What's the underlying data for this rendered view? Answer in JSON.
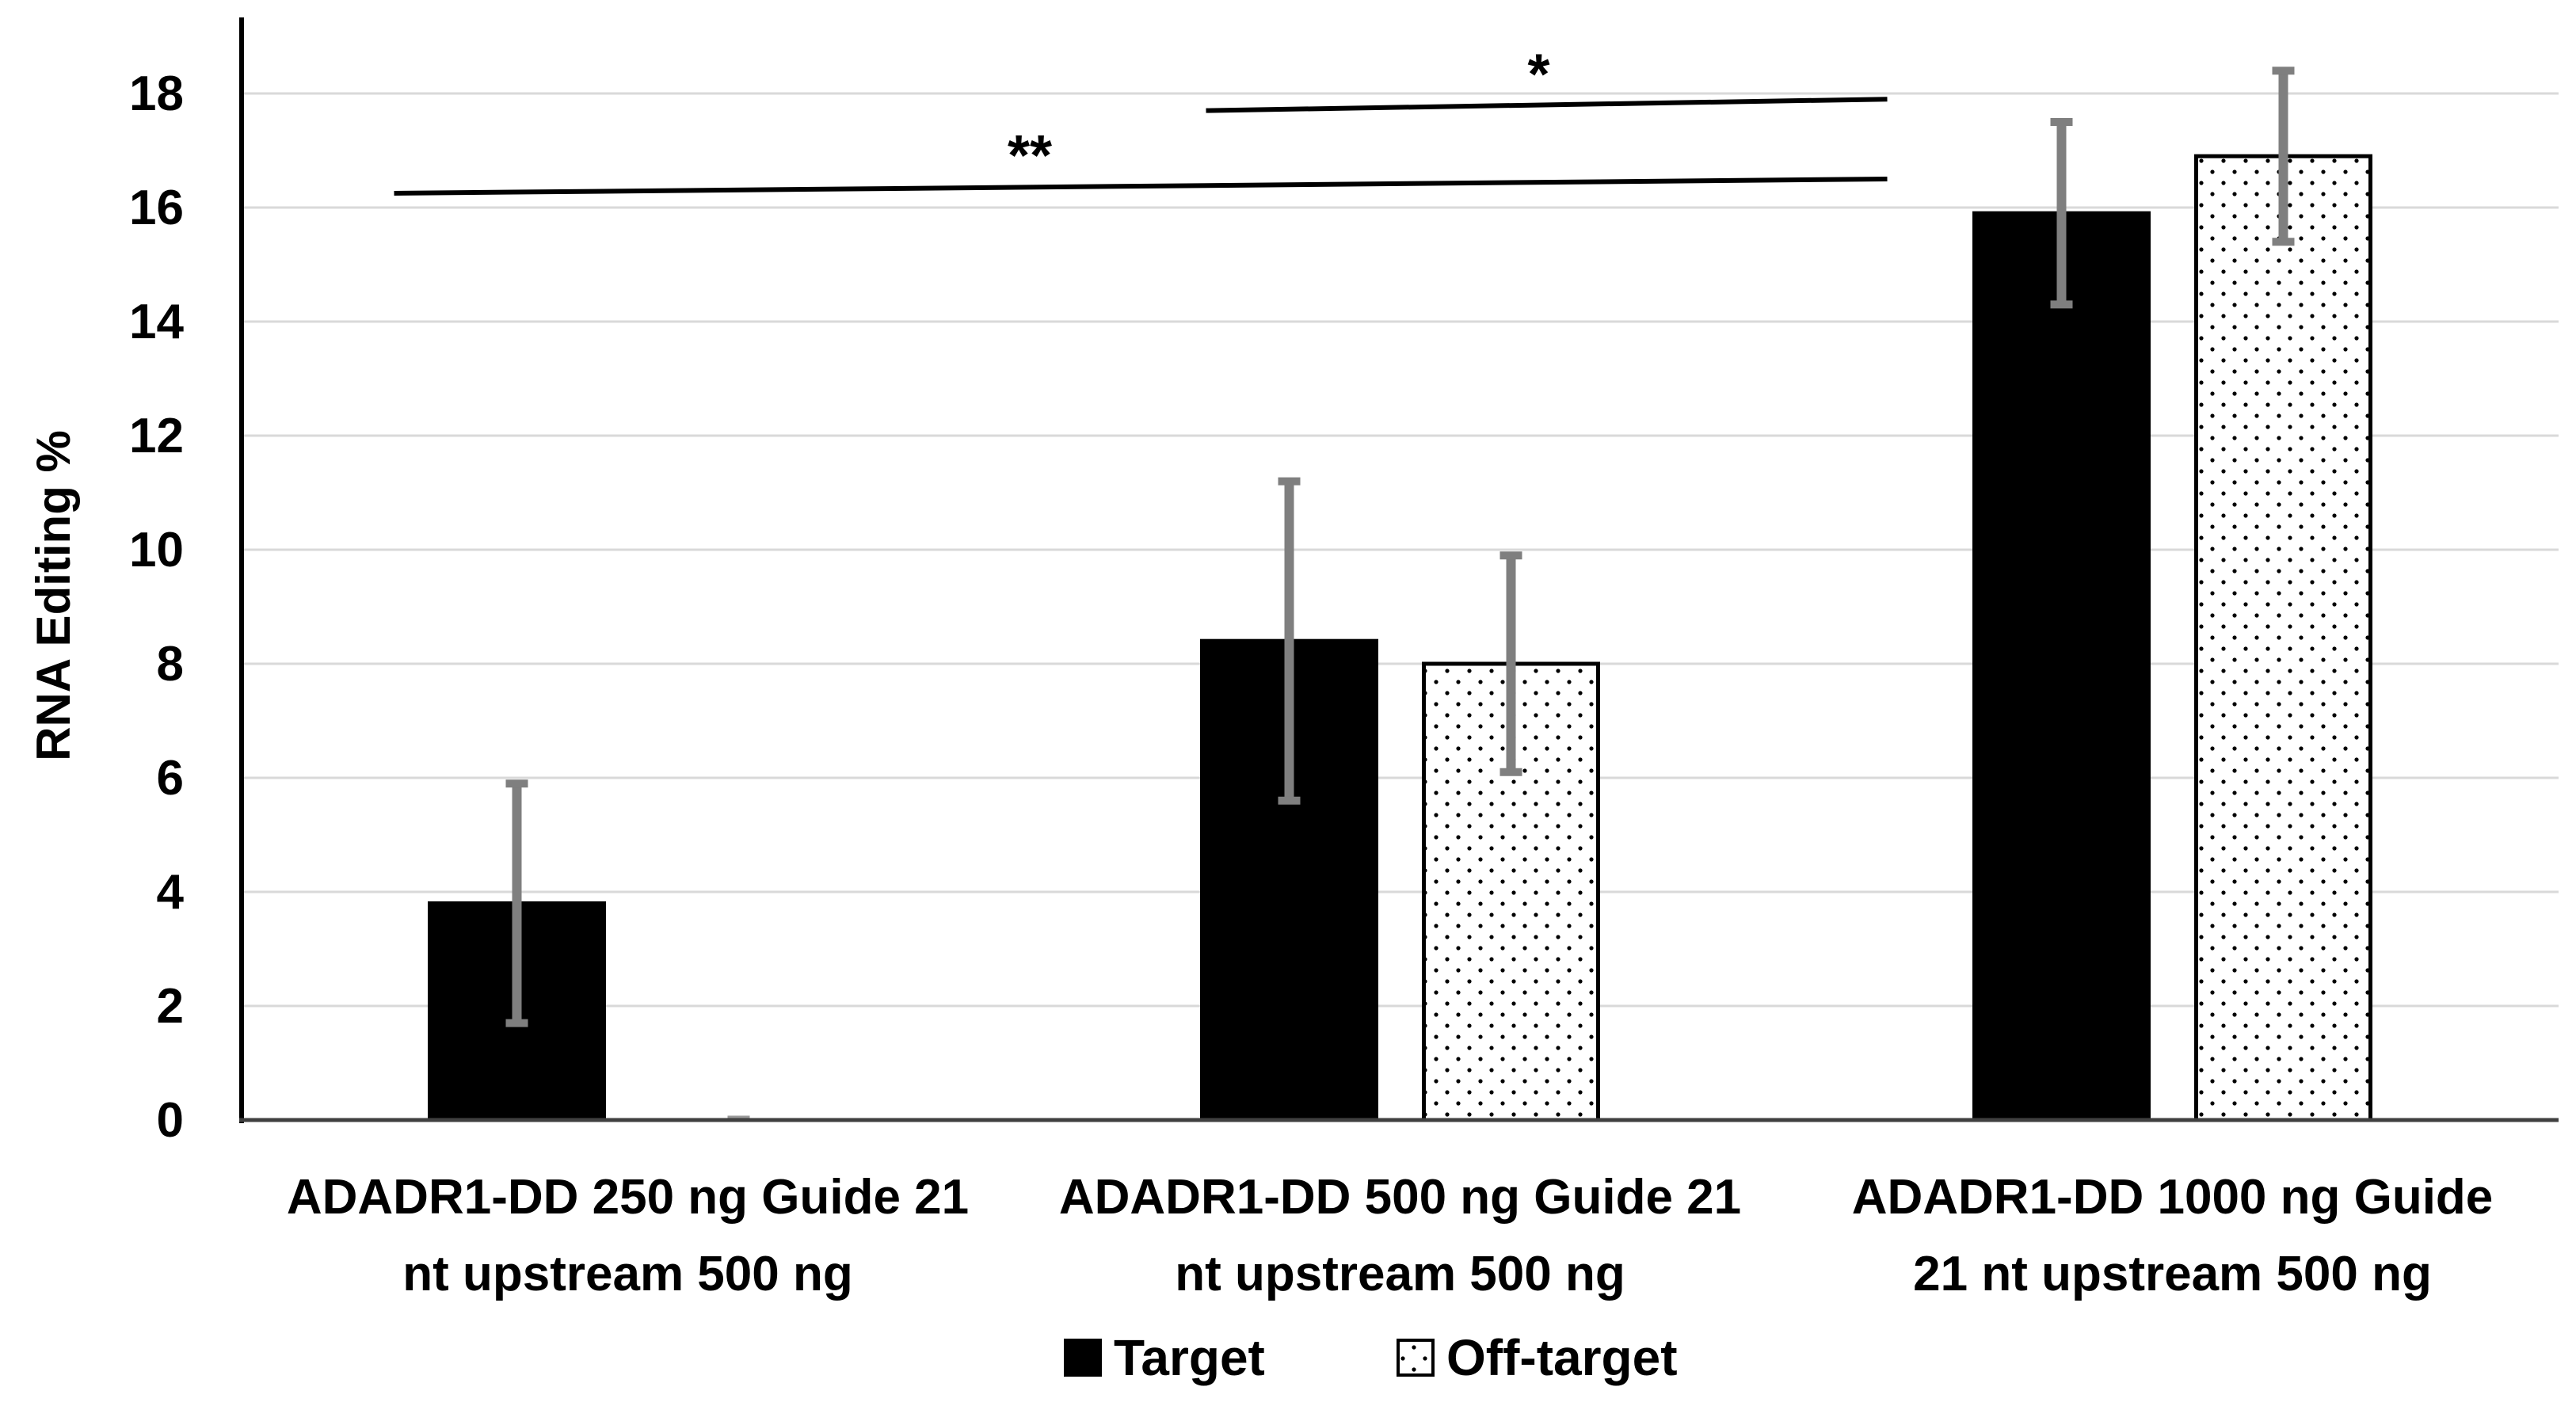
{
  "chart_data": {
    "type": "bar",
    "ylabel": "RNA Editing %",
    "xlabel": "",
    "ylim": [
      0,
      19
    ],
    "yticks": [
      0,
      2,
      4,
      6,
      8,
      10,
      12,
      14,
      16,
      18
    ],
    "grid": true,
    "legend_position": "bottom-center",
    "categories": [
      [
        "ADADR1-DD 250 ng Guide 21",
        "nt upstream 500 ng"
      ],
      [
        "ADADR1-DD 500 ng Guide 21",
        "nt upstream 500 ng"
      ],
      [
        "ADADR1-DD 1000 ng Guide",
        "21 nt upstream 500 ng"
      ]
    ],
    "series": [
      {
        "name": "Target",
        "color": "#000000",
        "pattern": "solid",
        "values": [
          3.8,
          8.4,
          15.9
        ],
        "error": [
          2.1,
          2.8,
          1.6
        ]
      },
      {
        "name": "Off-target",
        "color": "#ffffff",
        "pattern": "dotted",
        "values": [
          0.0,
          8.0,
          16.9
        ],
        "error": [
          0.0,
          1.9,
          1.5
        ]
      }
    ],
    "error_bar_color": "#7f7f7f",
    "significance": [
      {
        "label": "**",
        "from_category": 0,
        "to_category": 2,
        "y_start": 16.25,
        "y_end": 16.5
      },
      {
        "label": "*",
        "from_category": 1,
        "to_category": 2,
        "y_start": 17.7,
        "y_end": 17.9
      }
    ]
  }
}
